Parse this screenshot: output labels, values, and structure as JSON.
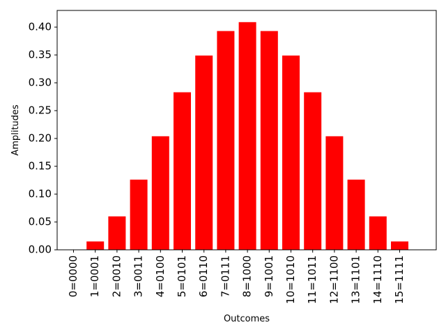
{
  "chart_data": {
    "type": "bar",
    "categories": [
      "0=0000",
      "1=0001",
      "2=0010",
      "3=0011",
      "4=0100",
      "5=0101",
      "6=0110",
      "7=0111",
      "8=1000",
      "9=1001",
      "10=1010",
      "11=1011",
      "12=1100",
      "13=1101",
      "14=1110",
      "15=1111"
    ],
    "values": [
      0.0,
      0.015,
      0.06,
      0.126,
      0.204,
      0.283,
      0.349,
      0.393,
      0.409,
      0.393,
      0.349,
      0.283,
      0.204,
      0.126,
      0.06,
      0.015
    ],
    "title": "",
    "xlabel": "Outcomes",
    "ylabel": "Amplitudes",
    "ylim": [
      0,
      0.43
    ],
    "yticks": [
      "0.00",
      "0.05",
      "0.10",
      "0.15",
      "0.20",
      "0.25",
      "0.30",
      "0.35",
      "0.40"
    ],
    "bar_color": "#ff0000",
    "grid": false,
    "legend": "none"
  }
}
